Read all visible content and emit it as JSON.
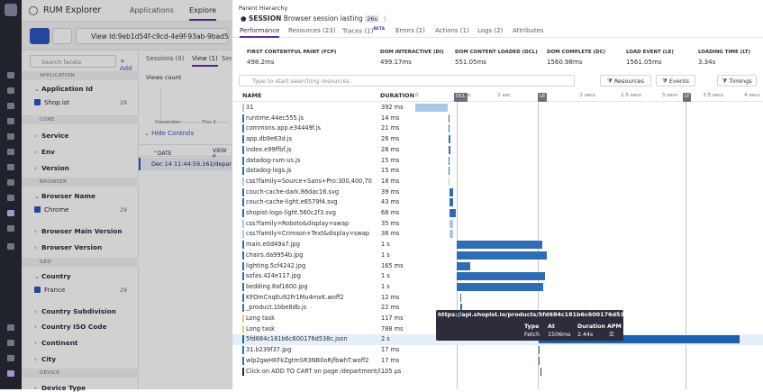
{
  "app": {
    "title": "RUM Explorer",
    "tabs": [
      "Applications",
      "Explore"
    ]
  },
  "toolbar": {
    "query": "View Id:9eb1d54f-c9cd-4e9f-93ab-9bad5d18f"
  },
  "facets": {
    "search_placeholder": "Search facets",
    "add_label": "Add",
    "sections": [
      "APPLICATION",
      "CORE",
      "BROWSER",
      "GEO",
      "DEVICE"
    ],
    "items": {
      "application_id": "Application Id",
      "service": "Service",
      "env": "Env",
      "version": "Version",
      "browser_name": "Browser Name",
      "browser_main_version": "Browser Main Version",
      "browser_version": "Browser Version",
      "country": "Country",
      "country_subdivision": "Country Subdivision",
      "country_iso_code": "Country ISO Code",
      "continent": "Continent",
      "city": "City",
      "device_type": "Device Type"
    },
    "values": {
      "app": {
        "label": "Shop.ist",
        "count": "29"
      },
      "browser": {
        "label": "Chrome",
        "count": "29"
      },
      "country": {
        "label": "France",
        "count": "29"
      }
    }
  },
  "results": {
    "tabs": [
      "Sessions (0)",
      "View (1)",
      "Ses"
    ],
    "chart_label": "Views count",
    "axis": [
      "December",
      "Thu 3"
    ],
    "hide_controls": "Hide Controls",
    "columns": [
      "DATE",
      "VIEW P"
    ],
    "row": {
      "date": "Dec 14 11:44:59.161",
      "view": "/depart"
    }
  },
  "panel": {
    "hierarchy": "Parent Hierarchy",
    "session_label": "SESSION",
    "session_desc": "Browser session lasting",
    "session_badge": "26s",
    "tabs": [
      "Performance",
      "Resources (23)",
      "Traces (1)",
      "Errors (2)",
      "Actions (1)",
      "Logs (2)",
      "Attributes"
    ],
    "beta": "BETA",
    "metrics": [
      {
        "label": "FIRST CONTENTFUL PAINT (FCP)",
        "value": "498.2ms"
      },
      {
        "label": "DOM INTERACTIVE (DI)",
        "value": "499.17ms"
      },
      {
        "label": "DOM CONTENT LOADED (DCL)",
        "value": "551.05ms"
      },
      {
        "label": "DOM COMPLETE (DC)",
        "value": "1560.98ms"
      },
      {
        "label": "LOAD EVENT (LE)",
        "value": "1561.05ms"
      },
      {
        "label": "LOADING TIME (LT)",
        "value": "3.34s"
      }
    ],
    "search_placeholder": "Type to start searching resources",
    "filters": [
      "Resources",
      "Events",
      "Timings"
    ],
    "col_name": "NAME",
    "col_duration": "DURATION",
    "ticks": [
      "0",
      ".5 sec",
      "1 sec",
      "1.5",
      "2 secs",
      "2.5 secs",
      "3 secs",
      "3.5 secs",
      "4 secs"
    ],
    "markers": [
      "DCL",
      "LE",
      "LT"
    ]
  },
  "rows": [
    {
      "name": "31",
      "duration": "392 ms",
      "color": "#a8c8e8",
      "start": 0.0,
      "dur": 0.392
    },
    {
      "name": "runtime.44ec555.js",
      "duration": "14 ms",
      "color": "#2e6db4",
      "start": 0.4,
      "dur": 0.014
    },
    {
      "name": "commons.app.e34449f.js",
      "duration": "21 ms",
      "color": "#2e6db4",
      "start": 0.4,
      "dur": 0.021
    },
    {
      "name": "app.db9e63d.js",
      "duration": "26 ms",
      "color": "#2e6db4",
      "start": 0.4,
      "dur": 0.026
    },
    {
      "name": "index.e99ffbf.js",
      "duration": "28 ms",
      "color": "#2e6db4",
      "start": 0.4,
      "dur": 0.028
    },
    {
      "name": "datadog-rum-us.js",
      "duration": "15 ms",
      "color": "#2e6db4",
      "start": 0.4,
      "dur": 0.015
    },
    {
      "name": "datadog-logs.js",
      "duration": "15 ms",
      "color": "#2e6db4",
      "start": 0.4,
      "dur": 0.015
    },
    {
      "name": "css?family=Source+Sans+Pro:300,400,700&displ...",
      "duration": "18 ms",
      "color": "#a8c8e8",
      "start": 0.4,
      "dur": 0.018
    },
    {
      "name": "couch-cache-dark.86dac16.svg",
      "duration": "39 ms",
      "color": "#2e6db4",
      "start": 0.42,
      "dur": 0.039
    },
    {
      "name": "couch-cache-light.e6579f4.svg",
      "duration": "43 ms",
      "color": "#2e6db4",
      "start": 0.42,
      "dur": 0.043
    },
    {
      "name": "shopist-logo-light.560c2f3.svg",
      "duration": "68 ms",
      "color": "#2e6db4",
      "start": 0.42,
      "dur": 0.068
    },
    {
      "name": "css?family=Roboto&display=swap",
      "duration": "35 ms",
      "color": "#a8c8e8",
      "start": 0.42,
      "dur": 0.035
    },
    {
      "name": "css?family=Crimson+Text&display=swap",
      "duration": "36 ms",
      "color": "#a8c8e8",
      "start": 0.42,
      "dur": 0.036
    },
    {
      "name": "main.e0d49a7.jpg",
      "duration": "1 s",
      "color": "#2e6db4",
      "start": 0.5,
      "dur": 1.05
    },
    {
      "name": "chairs.da9954b.jpg",
      "duration": "1 s",
      "color": "#2e6db4",
      "start": 0.5,
      "dur": 1.1
    },
    {
      "name": "lighting.5cf4242.jpg",
      "duration": "165 ms",
      "color": "#2e6db4",
      "start": 0.5,
      "dur": 0.165
    },
    {
      "name": "sofas.424e117.jpg",
      "duration": "1 s",
      "color": "#2e6db4",
      "start": 0.5,
      "dur": 1.08
    },
    {
      "name": "bedding.8af1600.jpg",
      "duration": "1 s",
      "color": "#2e6db4",
      "start": 0.5,
      "dur": 1.06
    },
    {
      "name": "KFOmCnqEu92Fr1Mu4mxK.woff2",
      "duration": "12 ms",
      "color": "#2e6db4",
      "start": 0.55,
      "dur": 0.012
    },
    {
      "name": "_product.1bbe8db.js",
      "duration": "22 ms",
      "color": "#2e6db4",
      "start": 0.55,
      "dur": 0.022
    },
    {
      "name": "Long task",
      "duration": "117 ms",
      "color": "#f5c97a",
      "start": 0.58,
      "dur": 0.117
    },
    {
      "name": "Long task",
      "duration": "788 ms",
      "color": "#f5c97a",
      "start": 0.6,
      "dur": 0.788
    },
    {
      "name": "5fd684c181b6c600176d538c.json",
      "duration": "2 s",
      "color": "#1b5fad",
      "start": 1.5,
      "dur": 2.44
    },
    {
      "name": "31.b239f37.jpg",
      "duration": "17 ms",
      "color": "#2e6db4",
      "start": 1.5,
      "dur": 0.017
    },
    {
      "name": "wlp2gwHKFkZgtmSR3NB0oRjfbwhT.woff2",
      "duration": "17 ms",
      "color": "#2e6db4",
      "start": 1.5,
      "dur": 0.017
    },
    {
      "name": "Click on ADD TO CART on page /department/l...",
      "duration": "105 µs",
      "color": "#2c2c3a",
      "start": 1.52,
      "dur": 0.0001
    }
  ],
  "tooltip": {
    "url": "https://api.shopist.io/products/5fd684c181b6c600176d538c.json",
    "type_label": "Type",
    "type_value": "Fetch",
    "at_label": "At",
    "at_value": "1506ms",
    "duration_label": "Duration",
    "duration_value": "2.44s",
    "apm_label": "APM"
  }
}
